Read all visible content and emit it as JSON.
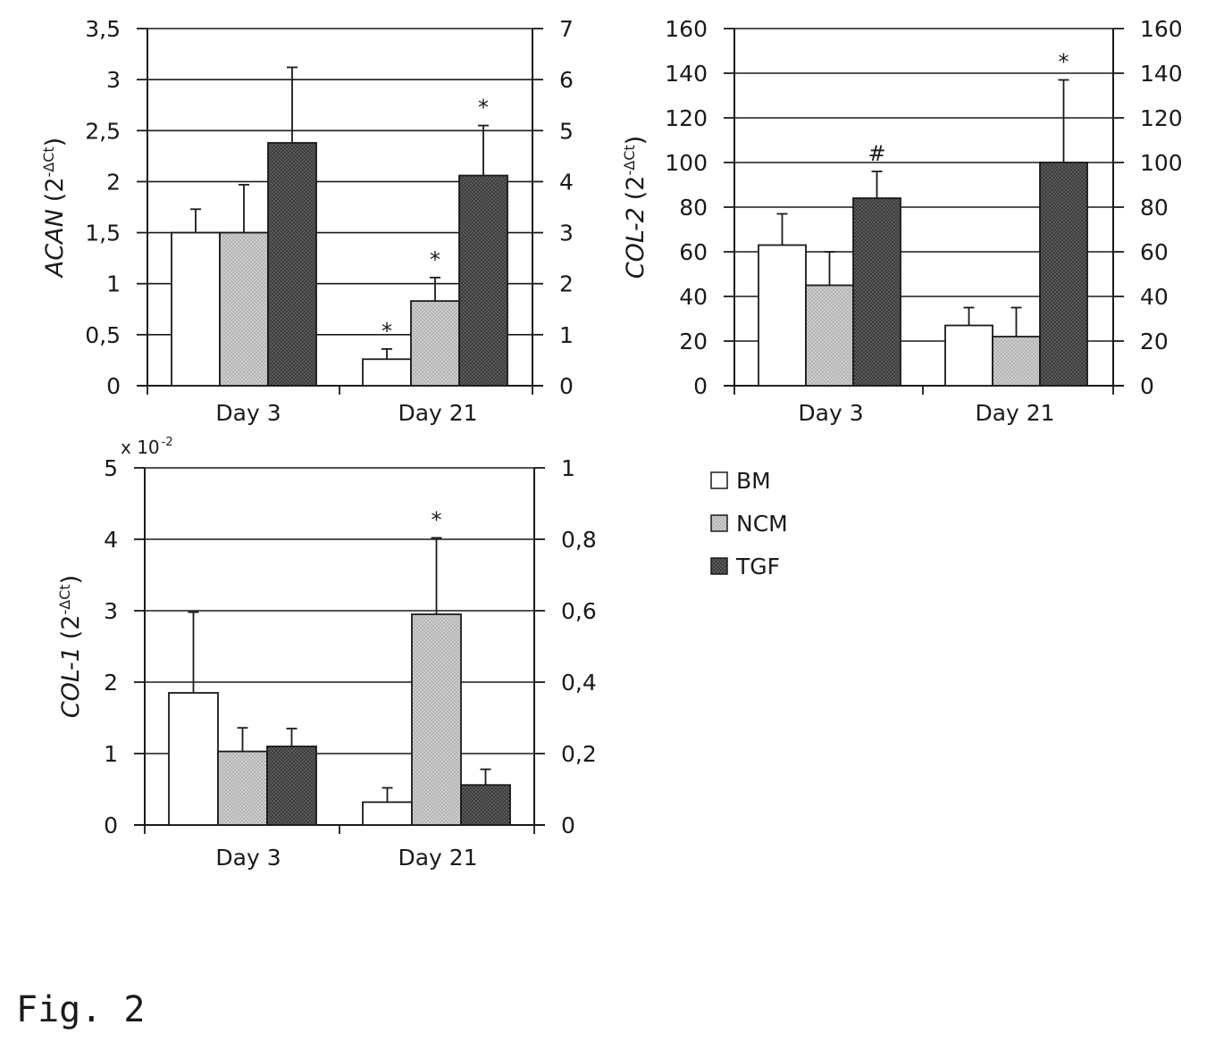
{
  "figure_label": "Fig. 2",
  "colors": {
    "BM": "#ffffff",
    "NCM": "#c8c8c8",
    "TGF": "#505050",
    "stroke": "#1a1a1a"
  },
  "legend": [
    {
      "name": "BM"
    },
    {
      "name": "NCM"
    },
    {
      "name": "TGF"
    }
  ],
  "chart_data": [
    {
      "type": "bar",
      "name": "acan-chart",
      "categories": [
        "Day 3",
        "Day 21"
      ],
      "series": [
        {
          "name": "BM",
          "values": [
            1.5,
            0.26
          ],
          "error": [
            0.23,
            0.1
          ]
        },
        {
          "name": "NCM",
          "values": [
            1.5,
            0.83
          ],
          "error": [
            0.47,
            0.23
          ]
        },
        {
          "name": "TGF",
          "values": [
            2.38,
            2.06
          ],
          "error": [
            0.74,
            0.49
          ]
        }
      ],
      "annotations": [
        {
          "category": 1,
          "series": 0,
          "text": "*"
        },
        {
          "category": 1,
          "series": 1,
          "text": "*"
        },
        {
          "category": 1,
          "series": 2,
          "text": "*"
        }
      ],
      "ylabel_main": "ACAN",
      "ylabel_unit": "(2",
      "ylabel_sup": "-ΔCt",
      "ylabel_close": ")",
      "ylim": [
        0,
        3.5
      ],
      "yticks": [
        "0",
        "0,5",
        "1",
        "1,5",
        "2",
        "2,5",
        "3",
        "3,5"
      ],
      "y2lim": [
        0,
        7
      ],
      "y2ticks": [
        "0",
        "1",
        "2",
        "3",
        "4",
        "5",
        "6",
        "7"
      ],
      "grid": true
    },
    {
      "type": "bar",
      "name": "col2-chart",
      "categories": [
        "Day 3",
        "Day 21"
      ],
      "series": [
        {
          "name": "BM",
          "values": [
            63,
            27
          ],
          "error": [
            14,
            8
          ]
        },
        {
          "name": "NCM",
          "values": [
            45,
            22
          ],
          "error": [
            15,
            13
          ]
        },
        {
          "name": "TGF",
          "values": [
            84,
            100
          ],
          "error": [
            12,
            37
          ]
        }
      ],
      "annotations": [
        {
          "category": 0,
          "series": 2,
          "text": "#"
        },
        {
          "category": 1,
          "series": 2,
          "text": "*"
        }
      ],
      "ylabel_main": "COL-2",
      "ylabel_unit": "(2",
      "ylabel_sup": "-ΔCt",
      "ylabel_close": ")",
      "ylim": [
        0,
        160
      ],
      "yticks": [
        "0",
        "20",
        "40",
        "60",
        "80",
        "100",
        "120",
        "140",
        "160"
      ],
      "y2lim": [
        0,
        160
      ],
      "y2ticks": [
        "0",
        "20",
        "40",
        "60",
        "80",
        "100",
        "120",
        "140",
        "160"
      ],
      "grid": true
    },
    {
      "type": "bar",
      "name": "col1-chart",
      "categories": [
        "Day 3",
        "Day 21"
      ],
      "series": [
        {
          "name": "BM",
          "values": [
            1.85,
            0.32
          ],
          "error": [
            1.13,
            0.2
          ]
        },
        {
          "name": "NCM",
          "values": [
            1.03,
            2.95
          ],
          "error": [
            0.33,
            1.07
          ]
        },
        {
          "name": "TGF",
          "values": [
            1.1,
            0.56
          ],
          "error": [
            0.25,
            0.22
          ]
        }
      ],
      "annotations": [
        {
          "category": 1,
          "series": 1,
          "text": "*"
        }
      ],
      "ylabel_main": "COL-1",
      "ylabel_unit": "(2",
      "ylabel_sup": "-ΔCt",
      "ylabel_close": ")",
      "multiplier_base": "x 10",
      "multiplier_exp": "-2",
      "ylim": [
        0,
        5
      ],
      "yticks": [
        "0",
        "1",
        "2",
        "3",
        "4",
        "5"
      ],
      "y2lim": [
        0,
        1
      ],
      "y2ticks": [
        "0",
        "0,2",
        "0,4",
        "0,6",
        "0,8",
        "1"
      ],
      "grid": true
    }
  ]
}
